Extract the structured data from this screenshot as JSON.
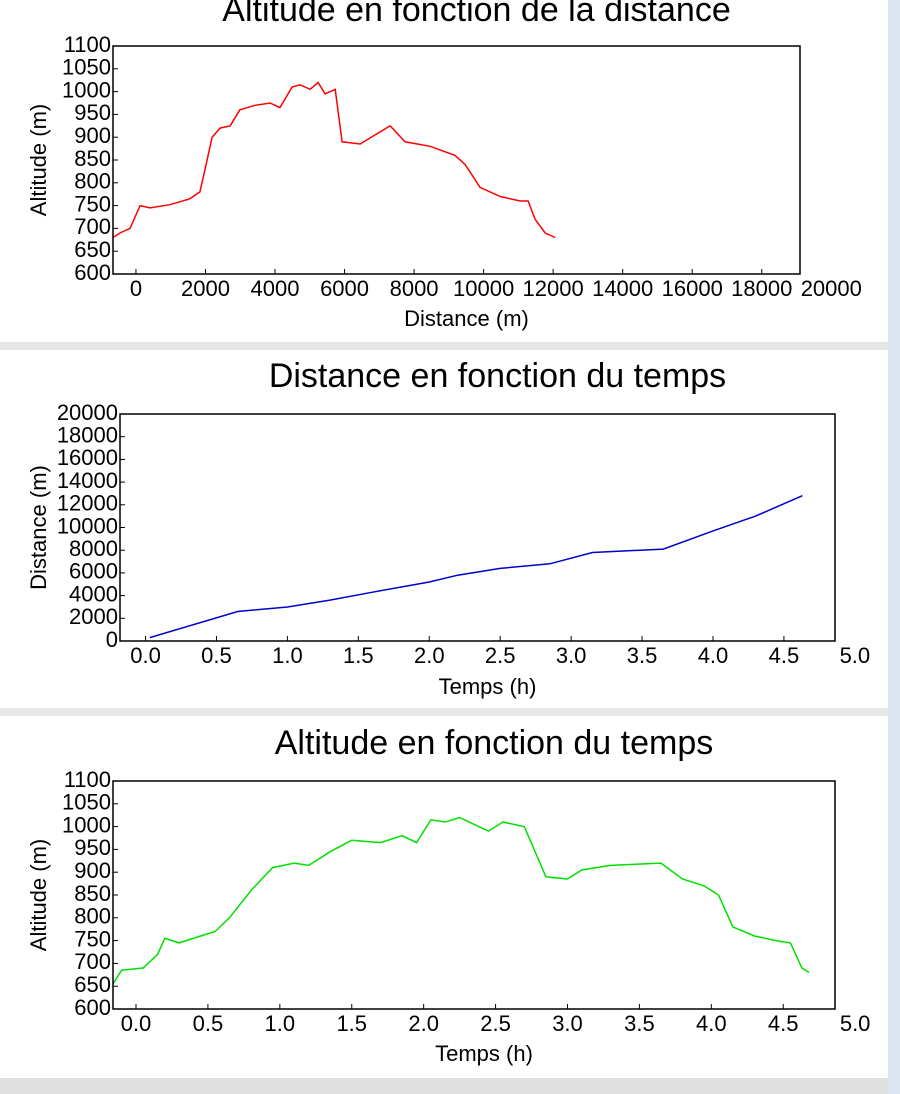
{
  "chart_data": [
    {
      "type": "line",
      "title": "Altitude en fonction de la distance",
      "x_label": "Distance (m)",
      "y_label": "Altitude (m)",
      "color": "#ff0000",
      "x": [
        -660,
        -460,
        -170,
        120,
        400,
        980,
        1550,
        1840,
        1990,
        2190,
        2420,
        2710,
        2990,
        3430,
        3860,
        4140,
        4490,
        4720,
        5010,
        5240,
        5440,
        5730,
        5930,
        6450,
        6880,
        7310,
        7740,
        8460,
        9180,
        9470,
        9900,
        10480,
        11050,
        11280,
        11480,
        11770,
        12060
      ],
      "values": [
        680,
        690,
        700,
        750,
        745,
        752,
        765,
        780,
        830,
        900,
        920,
        925,
        960,
        970,
        975,
        965,
        1010,
        1015,
        1005,
        1020,
        995,
        1005,
        890,
        885,
        905,
        925,
        890,
        880,
        860,
        840,
        790,
        770,
        760,
        760,
        720,
        690,
        680
      ],
      "xlim": [
        -660,
        19100
      ],
      "xticks": [
        0,
        2000,
        4000,
        6000,
        8000,
        10000,
        12000,
        14000,
        16000,
        18000,
        20000
      ],
      "ylim": [
        600,
        1100
      ],
      "yticks": [
        600,
        650,
        700,
        750,
        800,
        850,
        900,
        950,
        1000,
        1050,
        1100
      ]
    },
    {
      "type": "line",
      "title": "Distance en fonction du temps",
      "x_label": "Temps (h)",
      "y_label": "Distance (m)",
      "color": "#0000cc",
      "x": [
        0.03,
        0.65,
        1.0,
        1.3,
        1.6,
        2.0,
        2.2,
        2.5,
        2.85,
        3.15,
        3.65,
        4.0,
        4.3,
        4.63
      ],
      "values": [
        300,
        2600,
        3000,
        3600,
        4300,
        5200,
        5800,
        6400,
        6800,
        7800,
        8100,
        9700,
        11000,
        12800
      ],
      "xlim": [
        -0.18,
        4.86
      ],
      "xticks": [
        {
          "value": 0,
          "label": "0.0"
        },
        0.5,
        {
          "value": 1,
          "label": "1.0"
        },
        1.5,
        {
          "value": 2,
          "label": "2.0"
        },
        2.5,
        {
          "value": 3,
          "label": "3.0"
        },
        3.5,
        {
          "value": 4,
          "label": "4.0"
        },
        4.5,
        {
          "value": 5,
          "label": "5.0"
        }
      ],
      "ylim": [
        0,
        20000
      ],
      "yticks": [
        0,
        2000,
        4000,
        6000,
        8000,
        10000,
        12000,
        14000,
        16000,
        18000,
        20000
      ]
    },
    {
      "type": "line",
      "title": "Altitude en fonction du temps",
      "x_label": "Temps (h)",
      "y_label": "Altitude (m)",
      "color": "#00e000",
      "x": [
        -0.16,
        -0.1,
        0.05,
        0.15,
        0.2,
        0.3,
        0.45,
        0.55,
        0.65,
        0.8,
        0.95,
        1.1,
        1.2,
        1.35,
        1.5,
        1.7,
        1.85,
        1.95,
        2.05,
        2.15,
        2.25,
        2.35,
        2.45,
        2.55,
        2.7,
        2.85,
        3.0,
        3.1,
        3.3,
        3.65,
        3.8,
        3.95,
        4.05,
        4.15,
        4.3,
        4.45,
        4.55,
        4.63,
        4.68
      ],
      "values": [
        655,
        685,
        690,
        720,
        755,
        745,
        760,
        770,
        800,
        860,
        910,
        920,
        915,
        945,
        970,
        965,
        980,
        965,
        1015,
        1010,
        1020,
        1005,
        990,
        1010,
        1000,
        890,
        885,
        905,
        915,
        920,
        885,
        870,
        850,
        780,
        760,
        750,
        745,
        690,
        680
      ],
      "xlim": [
        -0.16,
        4.86
      ],
      "xticks": [
        {
          "value": 0,
          "label": "0.0"
        },
        0.5,
        {
          "value": 1,
          "label": "1.0"
        },
        1.5,
        {
          "value": 2,
          "label": "2.0"
        },
        2.5,
        {
          "value": 3,
          "label": "3.0"
        },
        3.5,
        {
          "value": 4,
          "label": "4.0"
        },
        4.5,
        {
          "value": 5,
          "label": "5.0"
        }
      ],
      "ylim": [
        600,
        1100
      ],
      "yticks": [
        600,
        650,
        700,
        750,
        800,
        850,
        900,
        950,
        1000,
        1050,
        1100
      ]
    }
  ]
}
